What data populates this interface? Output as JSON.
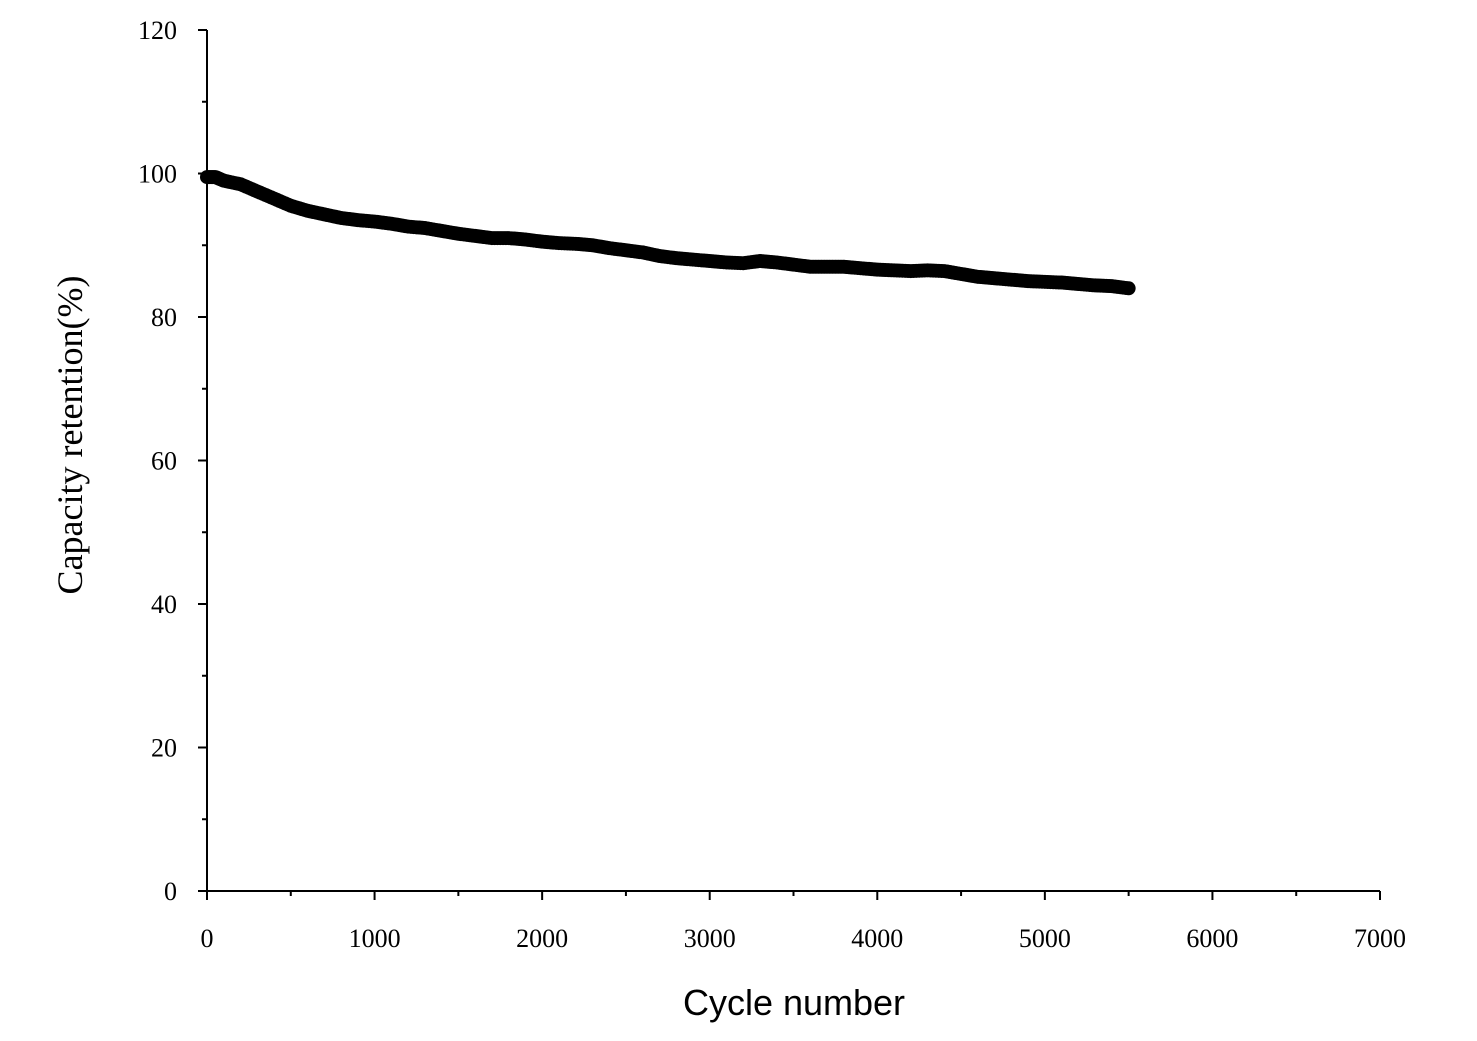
{
  "chart_data": {
    "type": "scatter",
    "title": "",
    "xlabel": "Cycle number",
    "ylabel": "Capacity retention(%)",
    "xlim": [
      0,
      7000
    ],
    "ylim": [
      0,
      120
    ],
    "x_ticks": [
      0,
      1000,
      2000,
      3000,
      4000,
      5000,
      6000,
      7000
    ],
    "y_ticks": [
      0,
      20,
      40,
      60,
      80,
      100,
      120
    ],
    "x_tick_labels": [
      "0",
      "1000",
      "2000",
      "3000",
      "4000",
      "5000",
      "6000",
      "7000"
    ],
    "y_tick_labels": [
      "0",
      "20",
      "40",
      "60",
      "80",
      "100",
      "120"
    ],
    "grid": false,
    "legend": "none",
    "marker_color": "#000000",
    "series": [
      {
        "x": [
          0,
          50,
          100,
          200,
          300,
          400,
          500,
          600,
          700,
          800,
          900,
          1000,
          1100,
          1200,
          1300,
          1400,
          1500,
          1600,
          1700,
          1800,
          1900,
          2000,
          2100,
          2200,
          2300,
          2400,
          2500,
          2600,
          2700,
          2800,
          2900,
          3000,
          3100,
          3200,
          3300,
          3400,
          3500,
          3600,
          3700,
          3800,
          3900,
          4000,
          4100,
          4200,
          4300,
          4400,
          4500,
          4600,
          4700,
          4800,
          4900,
          5000,
          5100,
          5200,
          5300,
          5400,
          5500
        ],
        "y": [
          99.5,
          99.5,
          99.0,
          98.5,
          97.5,
          96.5,
          95.5,
          94.8,
          94.3,
          93.8,
          93.5,
          93.3,
          93.0,
          92.6,
          92.4,
          92.0,
          91.6,
          91.3,
          91.0,
          91.0,
          90.8,
          90.5,
          90.3,
          90.2,
          90.0,
          89.6,
          89.3,
          89.0,
          88.5,
          88.2,
          88.0,
          87.8,
          87.6,
          87.5,
          87.8,
          87.6,
          87.3,
          87.0,
          87.0,
          87.0,
          86.8,
          86.6,
          86.5,
          86.4,
          86.5,
          86.4,
          86.0,
          85.6,
          85.4,
          85.2,
          85.0,
          84.9,
          84.8,
          84.6,
          84.4,
          84.3,
          84.0
        ]
      }
    ]
  }
}
